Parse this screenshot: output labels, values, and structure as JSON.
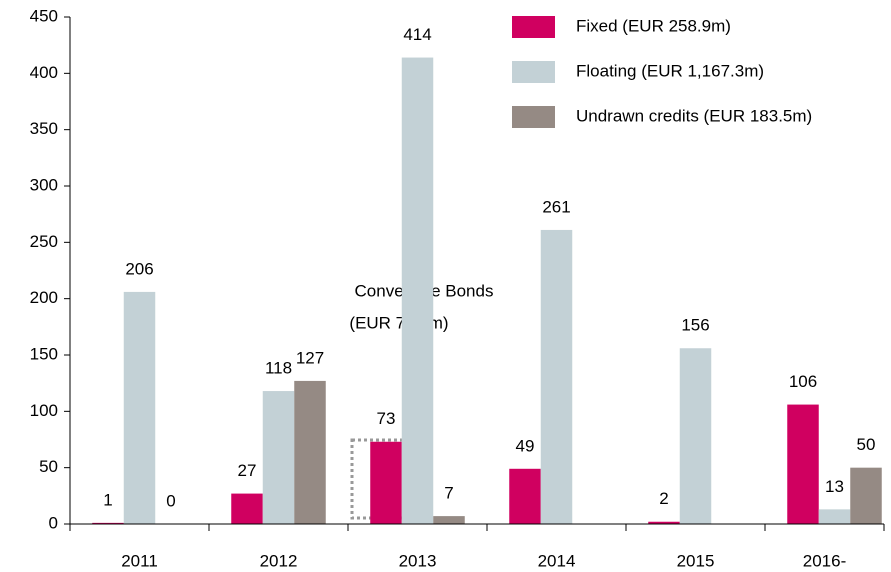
{
  "chart_data": {
    "type": "bar",
    "categories": [
      "2011",
      "2012",
      "2013",
      "2014",
      "2015",
      "2016-"
    ],
    "series": [
      {
        "name": "Fixed (EUR 258.9m)",
        "color": "#d00060",
        "values": [
          1,
          27,
          73,
          49,
          2,
          106
        ]
      },
      {
        "name": "Floating (EUR 1,167.3m)",
        "color": "#c3d1d6",
        "values": [
          206,
          118,
          414,
          261,
          156,
          13
        ]
      },
      {
        "name": "Undrawn credits (EUR 183.5m)",
        "color": "#958a84",
        "values": [
          0,
          127,
          7,
          null,
          null,
          50
        ]
      }
    ],
    "annotations": [
      "Convertible Bonds",
      "(EUR 71.3m)"
    ],
    "ylim": [
      0,
      450
    ],
    "yticks": [
      0,
      50,
      100,
      150,
      200,
      250,
      300,
      350,
      400,
      450
    ],
    "legend": "top-right"
  }
}
